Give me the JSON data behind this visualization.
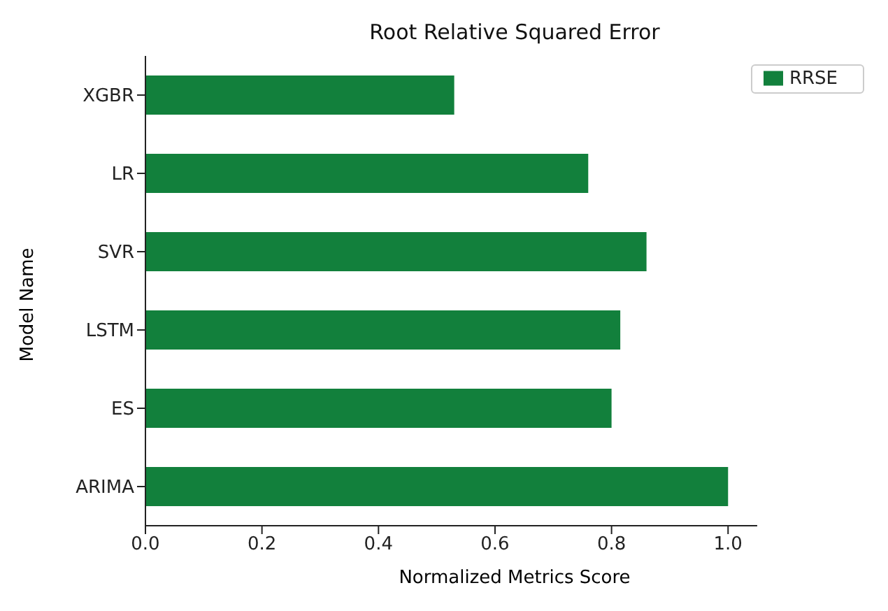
{
  "chart_data": {
    "type": "bar",
    "orientation": "horizontal",
    "title": "Root Relative Squared Error",
    "xlabel": "Normalized Metrics Score",
    "ylabel": "Model Name",
    "categories": [
      "XGBR",
      "LR",
      "SVR",
      "LSTM",
      "ES",
      "ARIMA"
    ],
    "series": [
      {
        "name": "RRSE",
        "color": "#12803c",
        "values": [
          0.53,
          0.76,
          0.86,
          0.815,
          0.8,
          1.0
        ]
      }
    ],
    "xlim": [
      0,
      1.05
    ],
    "xticks": [
      {
        "value": 0,
        "label": "0.0"
      },
      {
        "value": 0.2,
        "label": "0.2"
      },
      {
        "value": 0.4,
        "label": "0.4"
      },
      {
        "value": 0.6,
        "label": "0.6"
      },
      {
        "value": 0.8,
        "label": "0.8"
      },
      {
        "value": 1,
        "label": "1.0"
      }
    ],
    "grid": false,
    "legend": "top right"
  }
}
